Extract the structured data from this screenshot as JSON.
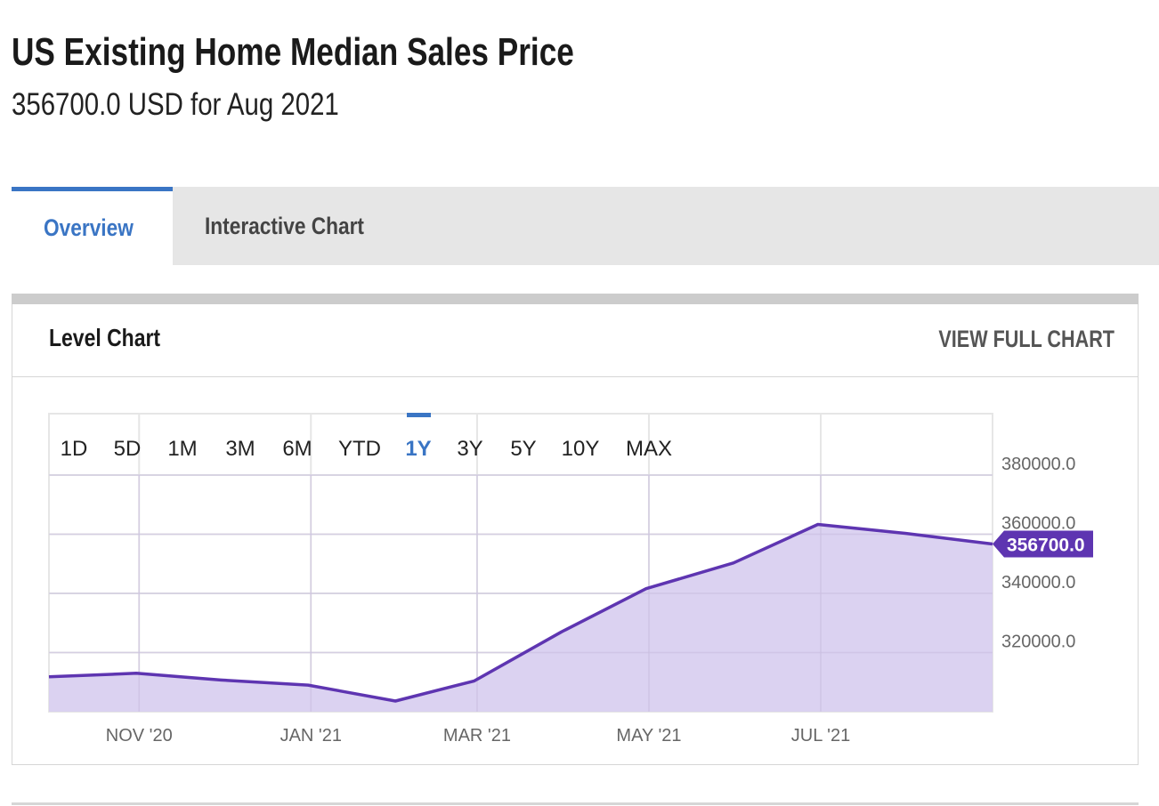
{
  "header": {
    "title": "US Existing Home Median Sales Price",
    "subtitle": "356700.0 USD for Aug 2021"
  },
  "tabs": [
    {
      "label": "Overview",
      "active": true
    },
    {
      "label": "Interactive Chart",
      "active": false
    }
  ],
  "card": {
    "title": "Level Chart",
    "view_full_label": "VIEW FULL CHART"
  },
  "range_buttons": [
    "1D",
    "5D",
    "1M",
    "3M",
    "6M",
    "YTD",
    "1Y",
    "3Y",
    "5Y",
    "10Y",
    "MAX"
  ],
  "active_range": "1Y",
  "colors": {
    "accent": "#3a75c4",
    "line": "#5e35b1",
    "fill": "#d7cdef",
    "grid": "#e6e6e6"
  },
  "chart_data": {
    "type": "area",
    "title": "",
    "xlabel": "",
    "ylabel": "",
    "x": [
      "2020-09-30",
      "2020-10-31",
      "2020-11-30",
      "2020-12-31",
      "2021-01-31",
      "2021-02-28",
      "2021-03-31",
      "2021-04-30",
      "2021-05-31",
      "2021-06-30",
      "2021-07-31",
      "2021-08-31"
    ],
    "values": [
      311800,
      313000,
      310700,
      309000,
      303600,
      310400,
      327000,
      341600,
      350300,
      363300,
      360300,
      356700
    ],
    "ylim": [
      300000,
      400000
    ],
    "y_ticks": [
      "320000.0",
      "340000.0",
      "360000.0",
      "380000.0"
    ],
    "y_tick_values": [
      320000,
      340000,
      360000,
      380000
    ],
    "x_ticks": [
      "NOV '20",
      "JAN '21",
      "MAR '21",
      "MAY '21",
      "JUL '21"
    ],
    "x_tick_dates": [
      "2020-11-01",
      "2021-01-01",
      "2021-03-01",
      "2021-05-01",
      "2021-07-01"
    ],
    "last_value_label": "356700.0",
    "grid": true,
    "legend": "none"
  }
}
